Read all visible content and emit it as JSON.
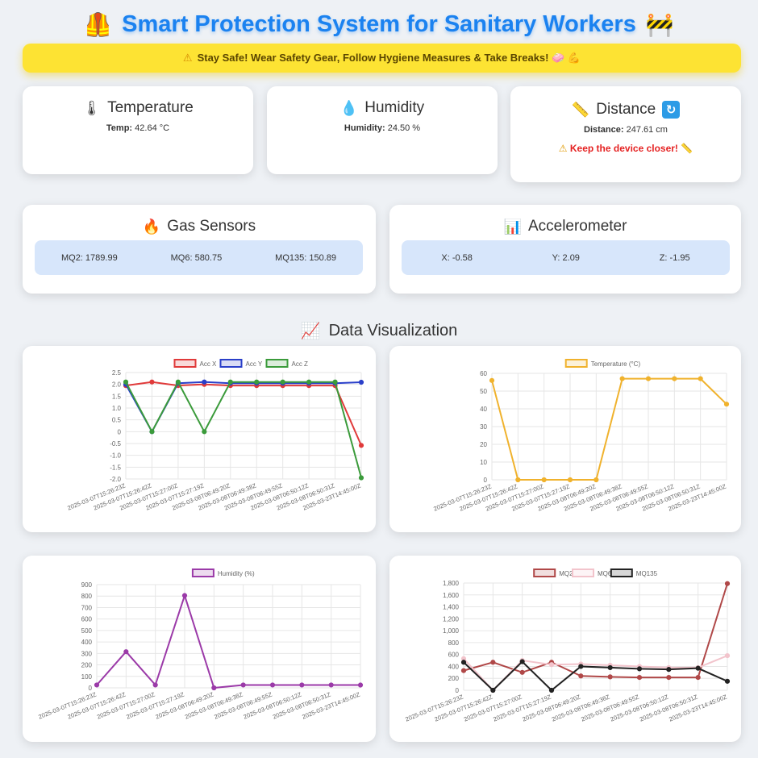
{
  "header": {
    "title": "Smart Protection System for Sanitary Workers",
    "left_icon": "safety-vest",
    "right_icon": "construction-sign"
  },
  "banner": {
    "text": "Stay Safe! Wear Safety Gear, Follow Hygiene Measures & Take Breaks! 🧼 💪"
  },
  "temperature": {
    "title": "Temperature",
    "label": "Temp:",
    "value": "42.64 °C"
  },
  "humidity": {
    "title": "Humidity",
    "label": "Humidity:",
    "value": "24.50 %"
  },
  "distance": {
    "title": "Distance",
    "label": "Distance:",
    "value": "247.61 cm",
    "alert": "Keep the device closer!"
  },
  "gas": {
    "title": "Gas Sensors",
    "mq2": "MQ2: 1789.99",
    "mq6": "MQ6: 580.75",
    "mq135": "MQ135: 150.89"
  },
  "accel": {
    "title": "Accelerometer",
    "x": "X: -0.58",
    "y": "Y: 2.09",
    "z": "Z: -1.95"
  },
  "viz": {
    "title": "Data Visualization"
  },
  "colors": {
    "accent": "#1b82f0",
    "banner": "#fde333",
    "alert": "#e52222"
  },
  "chart_data": [
    {
      "type": "line",
      "categories": [
        "2025-03-07T15:26:23Z",
        "2025-03-07T15:26:42Z",
        "2025-03-07T15:27:00Z",
        "2025-03-07T15:27:19Z",
        "2025-03-08T06:49:20Z",
        "2025-03-08T06:49:38Z",
        "2025-03-08T06:49:55Z",
        "2025-03-08T06:50:12Z",
        "2025-03-08T06:50:31Z",
        "2025-03-23T14:45:00Z"
      ],
      "series": [
        {
          "name": "Acc X",
          "color": "#e03a3a",
          "values": [
            1.95,
            2.1,
            1.95,
            2.0,
            1.95,
            1.95,
            1.95,
            1.95,
            1.95,
            -0.58
          ]
        },
        {
          "name": "Acc Y",
          "color": "#2a3fc9",
          "values": [
            2.0,
            0,
            2.05,
            2.1,
            2.05,
            2.05,
            2.05,
            2.05,
            2.05,
            2.09
          ]
        },
        {
          "name": "Acc Z",
          "color": "#3b9b3b",
          "values": [
            2.1,
            0,
            2.1,
            0,
            2.1,
            2.1,
            2.1,
            2.1,
            2.1,
            -1.95
          ]
        }
      ],
      "yticks": [
        "2.5",
        "2.0",
        "1.5",
        "1.0",
        "0.5",
        "0",
        "-0.5",
        "-1.0",
        "-1.5",
        "-2.0"
      ],
      "ylim": [
        -2.0,
        2.5
      ]
    },
    {
      "type": "line",
      "categories": [
        "2025-03-07T15:26:23Z",
        "2025-03-07T15:26:42Z",
        "2025-03-07T15:27:00Z",
        "2025-03-07T15:27:19Z",
        "2025-03-08T06:49:20Z",
        "2025-03-08T06:49:38Z",
        "2025-03-08T06:49:55Z",
        "2025-03-08T06:50:12Z",
        "2025-03-08T06:50:31Z",
        "2025-03-23T14:45:00Z"
      ],
      "series": [
        {
          "name": "Temperature (°C)",
          "color": "#f0b22d",
          "values": [
            56,
            0,
            0,
            0,
            0,
            57,
            57,
            57,
            57,
            42.64
          ]
        }
      ],
      "yticks": [
        "60",
        "50",
        "40",
        "30",
        "20",
        "10",
        "0"
      ],
      "ylim": [
        0,
        60
      ]
    },
    {
      "type": "line",
      "categories": [
        "2025-03-07T15:26:23Z",
        "2025-03-07T15:26:42Z",
        "2025-03-07T15:27:00Z",
        "2025-03-07T15:27:19Z",
        "2025-03-08T06:49:20Z",
        "2025-03-08T06:49:38Z",
        "2025-03-08T06:49:55Z",
        "2025-03-08T06:50:12Z",
        "2025-03-08T06:50:31Z",
        "2025-03-23T14:45:00Z"
      ],
      "series": [
        {
          "name": "Humidity (%)",
          "color": "#9b3aa8",
          "values": [
            25,
            315,
            25,
            805,
            0,
            25,
            25,
            25,
            25,
            24.5
          ]
        }
      ],
      "yticks": [
        "900",
        "800",
        "700",
        "600",
        "500",
        "400",
        "300",
        "200",
        "100",
        "0"
      ],
      "ylim": [
        0,
        900
      ]
    },
    {
      "type": "line",
      "categories": [
        "2025-03-07T15:26:23Z",
        "2025-03-07T15:26:42Z",
        "2025-03-07T15:27:00Z",
        "2025-03-07T15:27:19Z",
        "2025-03-08T06:49:20Z",
        "2025-03-08T06:49:38Z",
        "2025-03-08T06:49:55Z",
        "2025-03-08T06:50:12Z",
        "2025-03-08T06:50:31Z",
        "2025-03-23T14:45:00Z"
      ],
      "series": [
        {
          "name": "MQ2",
          "color": "#b04848",
          "values": [
            330,
            470,
            300,
            470,
            240,
            225,
            215,
            215,
            215,
            1789.99
          ]
        },
        {
          "name": "MQ6",
          "color": "#f2c4cc",
          "values": [
            530,
            0,
            500,
            430,
            440,
            420,
            400,
            380,
            380,
            580.75
          ]
        },
        {
          "name": "MQ135",
          "color": "#222222",
          "values": [
            470,
            0,
            480,
            0,
            400,
            380,
            360,
            350,
            370,
            150.89
          ]
        }
      ],
      "yticks": [
        "1,800",
        "1,600",
        "1,400",
        "1,200",
        "1,000",
        "800",
        "600",
        "400",
        "200",
        "0"
      ],
      "ylim": [
        0,
        1800
      ]
    }
  ]
}
